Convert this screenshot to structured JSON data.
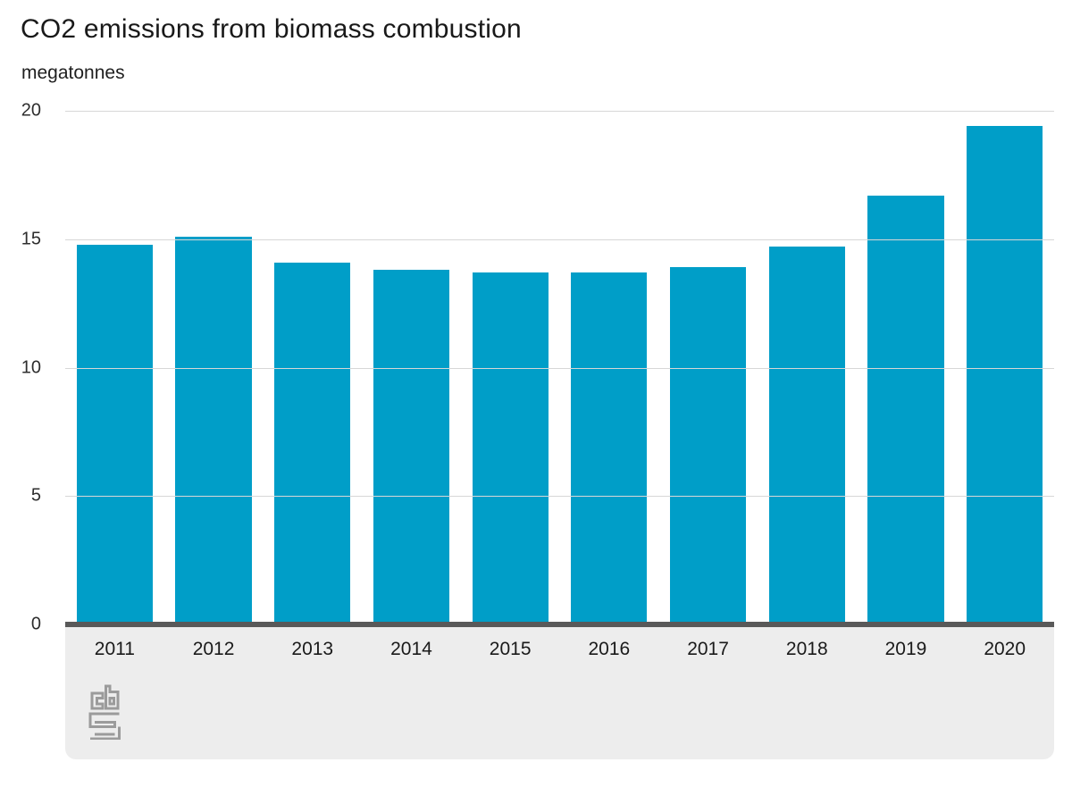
{
  "chart": {
    "title": "CO2 emissions from biomass combustion",
    "unit_label": "megatonnes"
  },
  "chart_data": {
    "type": "bar",
    "title": "CO2 emissions from biomass combustion",
    "unit": "megatonnes",
    "categories": [
      "2011",
      "2012",
      "2013",
      "2014",
      "2015",
      "2016",
      "2017",
      "2018",
      "2019",
      "2020"
    ],
    "values": [
      14.8,
      15.1,
      14.1,
      13.8,
      13.7,
      13.7,
      13.9,
      14.7,
      16.7,
      19.4
    ],
    "ylim": [
      0,
      20
    ],
    "yticks": [
      0,
      5,
      10,
      15,
      20
    ],
    "grid": "horizontal",
    "legend": "none"
  },
  "colors": {
    "bar": "#009ec8",
    "gridline": "#d7d7d7",
    "baseline": "#595959",
    "footer_bg": "#ededed",
    "logo_stroke": "#9b9b9b"
  },
  "branding": {
    "logo_name": "cbs-logo"
  }
}
